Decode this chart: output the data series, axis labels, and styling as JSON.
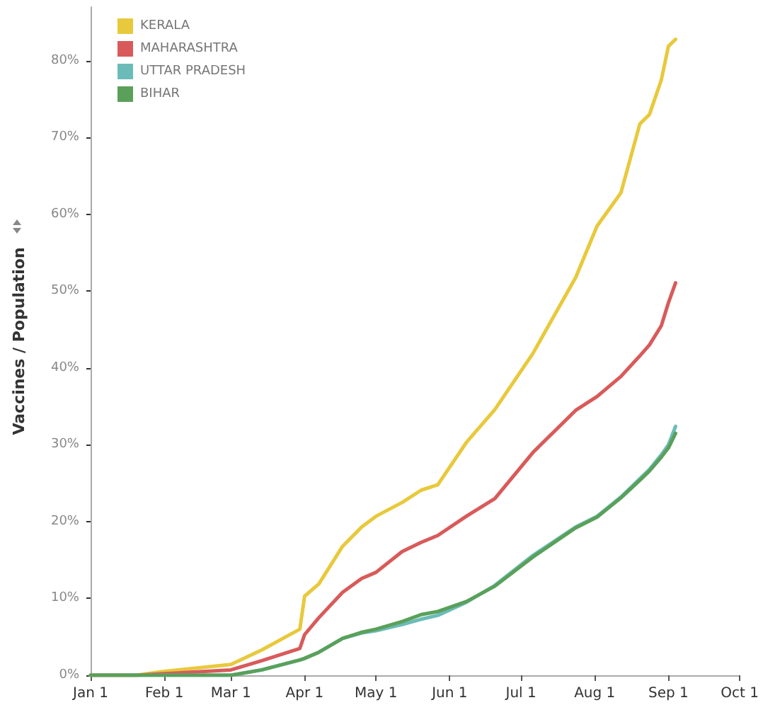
{
  "chart_data": {
    "type": "line",
    "ylabel": "Vaccines / Population",
    "x": [
      "--01-01",
      "--01-20",
      "--02-01",
      "--03-01",
      "--03-14",
      "--03-30",
      "--04-01",
      "--04-07",
      "--04-17",
      "--04-25",
      "--05-01",
      "--05-12",
      "--05-20",
      "--05-27",
      "--06-08",
      "--06-20",
      "--07-06",
      "--07-24",
      "--08-02",
      "--08-12",
      "--08-20",
      "--08-24",
      "--08-29",
      "--09-01",
      "--09-04"
    ],
    "series": [
      {
        "name": "KERALA",
        "color": "#e8c93c",
        "values": [
          0,
          0,
          0.5,
          1.4,
          3.3,
          6.0,
          10.3,
          11.9,
          16.8,
          19.3,
          20.7,
          22.5,
          24.1,
          24.8,
          30.3,
          34.6,
          41.9,
          51.8,
          58.5,
          62.8,
          71.8,
          73,
          77.5,
          81.9,
          82.8
        ]
      },
      {
        "name": "MAHARASHTRA",
        "color": "#d95a5a",
        "values": [
          0,
          0,
          0.2,
          0.7,
          1.9,
          3.5,
          5.3,
          7.5,
          10.8,
          12.6,
          13.4,
          16.1,
          17.3,
          18.2,
          20.7,
          23,
          29,
          34.5,
          36.3,
          38.9,
          41.6,
          43,
          45.5,
          48.5,
          51.1
        ]
      },
      {
        "name": "UTTAR PRADESH",
        "color": "#6bbcb8",
        "values": [
          0,
          0,
          0,
          0,
          0.7,
          2,
          2.2,
          3,
          4.8,
          5.5,
          5.8,
          6.6,
          7.3,
          7.8,
          9.5,
          11.7,
          15.6,
          19.3,
          20.7,
          23.2,
          25.6,
          26.8,
          28.7,
          30,
          32.4
        ]
      },
      {
        "name": "BIHAR",
        "color": "#5aa05a",
        "values": [
          0,
          0,
          0,
          0,
          0.7,
          2,
          2.2,
          3,
          4.8,
          5.6,
          6,
          7,
          7.9,
          8.3,
          9.6,
          11.6,
          15.4,
          19.2,
          20.6,
          23.1,
          25.4,
          26.6,
          28.4,
          29.6,
          31.5
        ]
      }
    ],
    "xlim": [
      "--01-01",
      "--10-01"
    ],
    "xticks": [
      {
        "value": "--01-01",
        "label": "Jan 1"
      },
      {
        "value": "--02-01",
        "label": "Feb 1"
      },
      {
        "value": "--03-01",
        "label": "Mar 1"
      },
      {
        "value": "--04-01",
        "label": "Apr 1"
      },
      {
        "value": "--05-01",
        "label": "May 1"
      },
      {
        "value": "--06-01",
        "label": "Jun 1"
      },
      {
        "value": "--07-01",
        "label": "Jul 1"
      },
      {
        "value": "--08-01",
        "label": "Aug 1"
      },
      {
        "value": "--09-01",
        "label": "Sep 1"
      },
      {
        "value": "--10-01",
        "label": "Oct 1"
      }
    ],
    "ylim": [
      0,
      87
    ],
    "yticks": [
      {
        "value": 0,
        "label": "0%"
      },
      {
        "value": 10,
        "label": "10%"
      },
      {
        "value": 20,
        "label": "20%"
      },
      {
        "value": 30,
        "label": "30%"
      },
      {
        "value": 40,
        "label": "40%"
      },
      {
        "value": 50,
        "label": "50%"
      },
      {
        "value": 60,
        "label": "60%"
      },
      {
        "value": 70,
        "label": "70%"
      },
      {
        "value": 80,
        "label": "80%"
      }
    ],
    "grid": false,
    "legend": "top left",
    "marker": "none",
    "line_style": "solid"
  }
}
